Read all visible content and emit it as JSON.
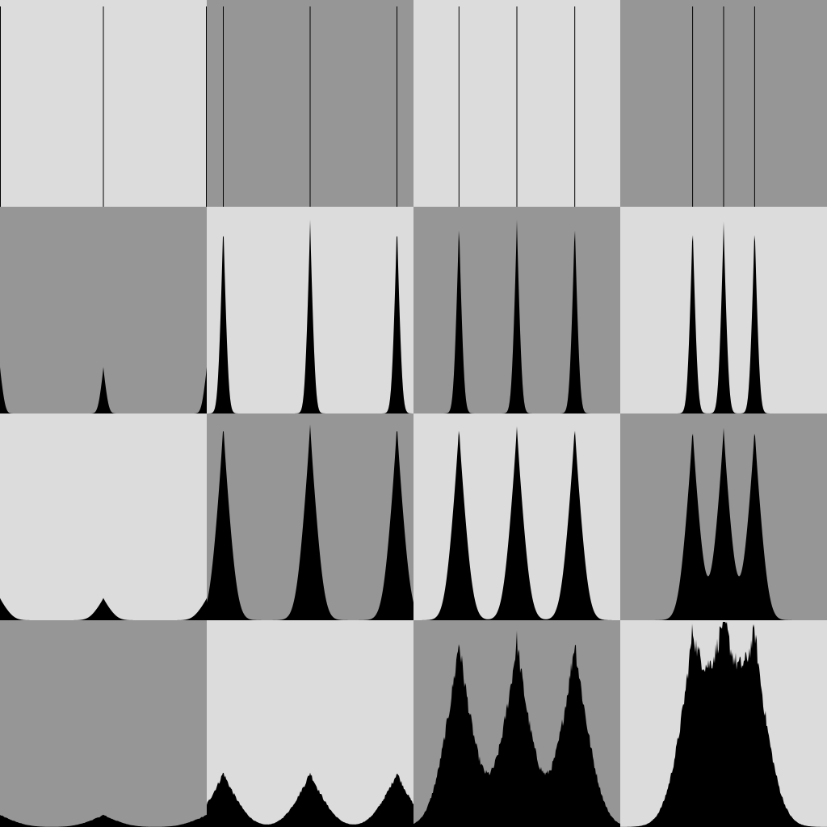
{
  "colors": {
    "light_bg": "#dcdcdc",
    "dark_bg": "#969696",
    "fill": "#000000"
  },
  "chart_data": [
    {
      "type": "area",
      "row": 0,
      "col": 0,
      "bg": "light",
      "peaks": [
        0,
        0.5,
        1
      ],
      "peak_height": 1.0,
      "spread": 0.0,
      "noise": 0.0
    },
    {
      "type": "area",
      "row": 0,
      "col": 1,
      "bg": "dark",
      "peaks": [
        0.08,
        0.5,
        0.92
      ],
      "peak_height": 1.0,
      "spread": 0.0,
      "noise": 0.0
    },
    {
      "type": "area",
      "row": 0,
      "col": 2,
      "bg": "light",
      "peaks": [
        0.22,
        0.5,
        0.78
      ],
      "peak_height": 1.0,
      "spread": 0.0,
      "noise": 0.0
    },
    {
      "type": "area",
      "row": 0,
      "col": 3,
      "bg": "dark",
      "peaks": [
        0.35,
        0.5,
        0.65
      ],
      "peak_height": 1.0,
      "spread": 0.0,
      "noise": 0.0
    },
    {
      "type": "area",
      "row": 1,
      "col": 0,
      "bg": "dark",
      "peaks": [
        0,
        0.5,
        1
      ],
      "peak_height": 0.23,
      "spread": 0.016,
      "noise": 0.0
    },
    {
      "type": "area",
      "row": 1,
      "col": 1,
      "bg": "light",
      "peaks": [
        0.08,
        0.5,
        0.92
      ],
      "peak_height": 0.96,
      "spread": 0.016,
      "noise": 0.0
    },
    {
      "type": "area",
      "row": 1,
      "col": 2,
      "bg": "dark",
      "peaks": [
        0.22,
        0.5,
        0.78
      ],
      "peak_height": 0.96,
      "spread": 0.016,
      "noise": 0.0
    },
    {
      "type": "area",
      "row": 1,
      "col": 3,
      "bg": "light",
      "peaks": [
        0.35,
        0.5,
        0.65
      ],
      "peak_height": 0.95,
      "spread": 0.016,
      "noise": 0.0
    },
    {
      "type": "area",
      "row": 2,
      "col": 0,
      "bg": "light",
      "peaks": [
        0,
        0.5,
        1
      ],
      "peak_height": 0.11,
      "spread": 0.04,
      "noise": 0.0
    },
    {
      "type": "area",
      "row": 2,
      "col": 1,
      "bg": "dark",
      "peaks": [
        0.08,
        0.5,
        0.92
      ],
      "peak_height": 0.97,
      "spread": 0.04,
      "noise": 0.0
    },
    {
      "type": "area",
      "row": 2,
      "col": 2,
      "bg": "light",
      "peaks": [
        0.22,
        0.5,
        0.78
      ],
      "peak_height": 0.96,
      "spread": 0.04,
      "noise": 0.0
    },
    {
      "type": "area",
      "row": 2,
      "col": 3,
      "bg": "dark",
      "peaks": [
        0.35,
        0.5,
        0.65
      ],
      "peak_height": 0.95,
      "spread": 0.04,
      "noise": 0.0
    },
    {
      "type": "area",
      "row": 3,
      "col": 0,
      "bg": "dark",
      "peaks": [
        0,
        0.5,
        1
      ],
      "peak_height": 0.06,
      "spread": 0.08,
      "noise": 0.1
    },
    {
      "type": "area",
      "row": 3,
      "col": 1,
      "bg": "light",
      "peaks": [
        0.08,
        0.5,
        0.92
      ],
      "peak_height": 0.27,
      "spread": 0.08,
      "noise": 0.1
    },
    {
      "type": "area",
      "row": 3,
      "col": 2,
      "bg": "dark",
      "peaks": [
        0.22,
        0.5,
        0.78
      ],
      "peak_height": 0.92,
      "spread": 0.08,
      "noise": 0.12
    },
    {
      "type": "area",
      "row": 3,
      "col": 3,
      "bg": "light",
      "peaks": [
        0.35,
        0.5,
        0.65
      ],
      "peak_height": 0.88,
      "spread": 0.08,
      "noise": 0.12
    }
  ]
}
